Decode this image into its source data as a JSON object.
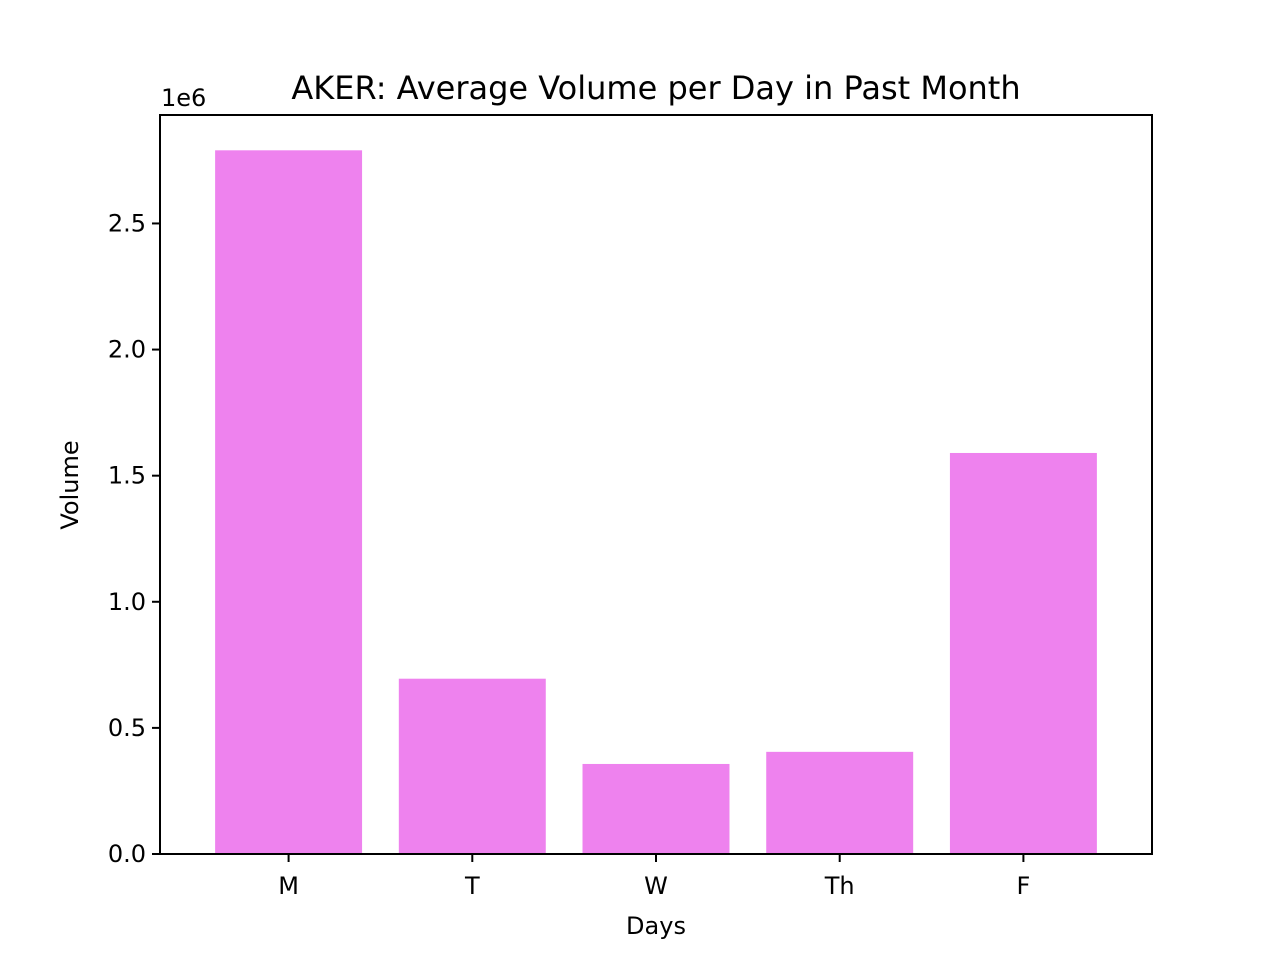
{
  "chart_data": {
    "type": "bar",
    "title": "AKER: Average Volume per Day in Past Month",
    "xlabel": "Days",
    "ylabel": "Volume",
    "y_offset_label": "1e6",
    "y_scale": 1000000,
    "categories": [
      "M",
      "T",
      "W",
      "Th",
      "F"
    ],
    "values": [
      2790000,
      695000,
      357000,
      405000,
      1590000
    ],
    "ylim": [
      0,
      2930000
    ],
    "yticks": [
      0.0,
      0.5,
      1.0,
      1.5,
      2.0,
      2.5
    ],
    "ytick_labels": [
      "0.0",
      "0.5",
      "1.0",
      "1.5",
      "2.0",
      "2.5"
    ],
    "bar_color": "#ee82ee",
    "grid": false,
    "legend": "none"
  }
}
